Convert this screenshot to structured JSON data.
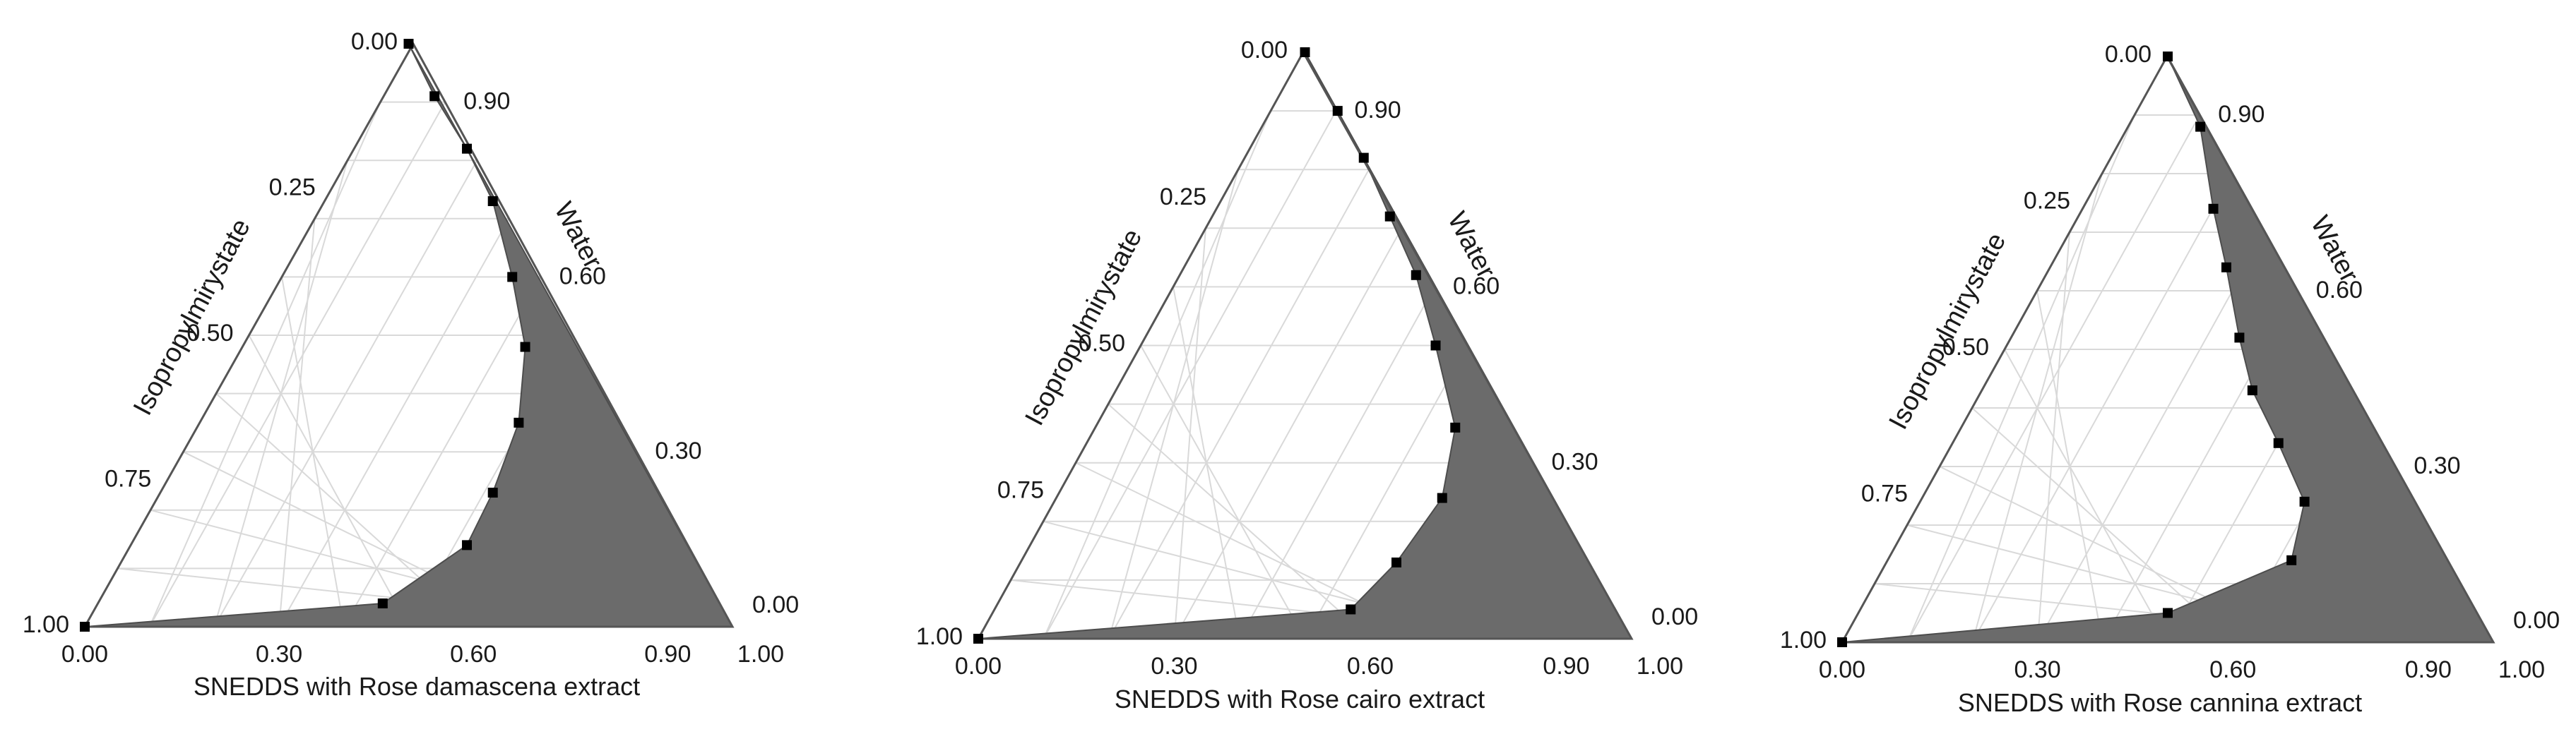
{
  "figure": {
    "colors": {
      "region": "#6b6b6b",
      "axis": "#555555",
      "grid": "#d9d9d9",
      "marker": "#000000",
      "text": "#1a1a1a"
    }
  },
  "chart_data": [
    {
      "type": "ternary",
      "title": "SNEDDS with Rose damascena extract",
      "left_axis_label": "Isopropylmirystate",
      "right_axis_label": "Water",
      "left_ticks": [
        "0.00",
        "0.25",
        "0.50",
        "0.75",
        "1.00"
      ],
      "right_ticks": [
        "0.90",
        "0.60",
        "0.30",
        "0.00"
      ],
      "bottom_ticks": [
        "0.00",
        "0.30",
        "0.60",
        "0.90",
        "1.00"
      ],
      "boundary_points_xy": [
        [
          0.5,
          1.0
        ],
        [
          0.54,
          0.91
        ],
        [
          0.59,
          0.82
        ],
        [
          0.63,
          0.73
        ],
        [
          0.66,
          0.6
        ],
        [
          0.68,
          0.48
        ],
        [
          0.67,
          0.35
        ],
        [
          0.63,
          0.23
        ],
        [
          0.59,
          0.14
        ],
        [
          0.46,
          0.04
        ],
        [
          0.0,
          0.0
        ]
      ],
      "region": "single-phase area between boundary and right edge",
      "grid": true
    },
    {
      "type": "ternary",
      "title": "SNEDDS with Rose cairo extract",
      "left_axis_label": "Isopropylmirystate",
      "right_axis_label": "Water",
      "left_ticks": [
        "0.00",
        "0.25",
        "0.50",
        "0.75",
        "1.00"
      ],
      "right_ticks": [
        "0.90",
        "0.60",
        "0.30",
        "0.00"
      ],
      "bottom_ticks": [
        "0.00",
        "0.30",
        "0.60",
        "0.90",
        "1.00"
      ],
      "boundary_points_xy": [
        [
          0.5,
          1.0
        ],
        [
          0.55,
          0.9
        ],
        [
          0.59,
          0.82
        ],
        [
          0.63,
          0.72
        ],
        [
          0.67,
          0.62
        ],
        [
          0.7,
          0.5
        ],
        [
          0.73,
          0.36
        ],
        [
          0.71,
          0.24
        ],
        [
          0.64,
          0.13
        ],
        [
          0.57,
          0.05
        ],
        [
          0.0,
          0.0
        ]
      ],
      "region": "single-phase area between boundary and right edge",
      "grid": true
    },
    {
      "type": "ternary",
      "title": "SNEDDS with Rose cannina extract",
      "left_axis_label": "Isopropylmirystate",
      "right_axis_label": "Water",
      "left_ticks": [
        "0.00",
        "0.25",
        "0.50",
        "0.75",
        "1.00"
      ],
      "right_ticks": [
        "0.90",
        "0.60",
        "0.30",
        "0.00"
      ],
      "bottom_ticks": [
        "0.00",
        "0.30",
        "0.60",
        "0.90",
        "1.00"
      ],
      "boundary_points_xy": [
        [
          0.5,
          1.0
        ],
        [
          0.55,
          0.88
        ],
        [
          0.57,
          0.74
        ],
        [
          0.59,
          0.64
        ],
        [
          0.61,
          0.52
        ],
        [
          0.63,
          0.43
        ],
        [
          0.67,
          0.34
        ],
        [
          0.71,
          0.24
        ],
        [
          0.69,
          0.14
        ],
        [
          0.5,
          0.05
        ],
        [
          0.0,
          0.0
        ]
      ],
      "region": "single-phase area between boundary and right edge",
      "grid": true
    }
  ]
}
